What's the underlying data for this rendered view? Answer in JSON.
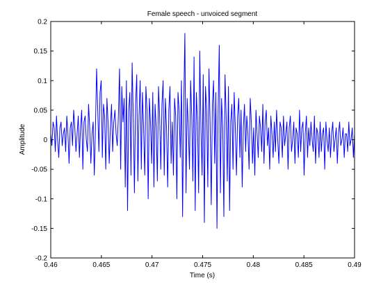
{
  "chart_data": {
    "type": "line",
    "title": "Female speech - unvoiced segment",
    "xlabel": "Time (s)",
    "ylabel": "Amplitude",
    "xlim": [
      0.46,
      0.49
    ],
    "ylim": [
      -0.2,
      0.2
    ],
    "grid": false,
    "legend": "none",
    "x_ticks": [
      "0.46",
      "0.465",
      "0.47",
      "0.475",
      "0.48",
      "0.485",
      "0.49"
    ],
    "y_ticks": [
      "-0.2",
      "-0.15",
      "-0.1",
      "-0.05",
      "0",
      "0.05",
      "0.1",
      "0.15",
      "0.2"
    ],
    "line_color": "#0000ff",
    "series": [
      {
        "x_start": 0.46,
        "x_end": 0.49,
        "values": [
          0.01,
          -0.01,
          0.03,
          0.02,
          -0.02,
          0.04,
          0.0,
          -0.03,
          0.02,
          0.03,
          -0.01,
          0.01,
          0.02,
          -0.02,
          0.04,
          0.01,
          -0.04,
          0.02,
          0.03,
          -0.01,
          0.05,
          0.02,
          -0.02,
          0.01,
          0.04,
          -0.03,
          0.02,
          0.05,
          -0.05,
          0.03,
          0.04,
          0.0,
          -0.02,
          0.06,
          0.02,
          -0.04,
          0.01,
          0.03,
          -0.06,
          0.02,
          0.12,
          0.05,
          -0.02,
          0.08,
          0.1,
          -0.03,
          0.06,
          0.04,
          -0.05,
          0.07,
          0.03,
          -0.04,
          0.02,
          0.06,
          -0.02,
          0.03,
          0.05,
          0.01,
          -0.01,
          0.04,
          0.12,
          -0.05,
          0.09,
          0.03,
          0.07,
          -0.08,
          0.1,
          -0.12,
          0.05,
          0.08,
          -0.06,
          0.13,
          0.04,
          -0.09,
          0.06,
          0.11,
          -0.07,
          0.04,
          0.1,
          -0.05,
          0.08,
          0.02,
          -0.06,
          0.09,
          0.05,
          -0.1,
          0.07,
          0.03,
          -0.04,
          0.08,
          -0.08,
          0.06,
          0.02,
          -0.07,
          0.09,
          0.04,
          -0.05,
          0.06,
          0.1,
          -0.06,
          0.07,
          0.02,
          -0.08,
          0.05,
          0.09,
          -0.04,
          0.03,
          -0.06,
          0.07,
          0.04,
          -0.1,
          0.08,
          0.05,
          -0.03,
          0.1,
          -0.13,
          0.06,
          0.18,
          -0.09,
          0.07,
          0.02,
          -0.05,
          0.1,
          0.04,
          -0.07,
          0.14,
          -0.12,
          0.08,
          0.03,
          -0.09,
          0.15,
          0.02,
          -0.06,
          0.11,
          -0.14,
          0.09,
          0.05,
          -0.08,
          0.12,
          0.03,
          -0.11,
          0.06,
          0.1,
          -0.04,
          0.08,
          -0.15,
          0.05,
          0.16,
          -0.09,
          0.07,
          0.02,
          -0.13,
          0.11,
          0.04,
          -0.07,
          0.09,
          -0.12,
          0.03,
          0.06,
          -0.05,
          0.08,
          0.02,
          -0.06,
          0.04,
          0.07,
          -0.03,
          0.05,
          -0.08,
          0.02,
          0.06,
          -0.02,
          0.04,
          0.01,
          -0.05,
          0.07,
          0.03,
          -0.04,
          0.02,
          -0.06,
          0.05,
          0.01,
          -0.03,
          0.04,
          0.02,
          -0.02,
          0.06,
          -0.04,
          0.03,
          0.05,
          -0.01,
          0.02,
          -0.05,
          0.04,
          0.01,
          -0.03,
          0.03,
          -0.02,
          0.05,
          0.0,
          -0.04,
          0.03,
          0.02,
          -0.03,
          0.04,
          -0.01,
          0.01,
          0.03,
          -0.05,
          0.02,
          0.04,
          -0.02,
          0.0,
          0.03,
          -0.04,
          0.02,
          0.01,
          -0.03,
          0.05,
          -0.02,
          0.02,
          0.03,
          -0.06,
          0.01,
          0.04,
          -0.03,
          0.02,
          -0.01,
          0.03,
          0.0,
          -0.02,
          0.04,
          -0.04,
          0.02,
          0.01,
          -0.03,
          0.03,
          -0.02,
          0.01,
          0.02,
          -0.05,
          0.03,
          0.0,
          -0.02,
          0.02,
          -0.03,
          0.01,
          0.03,
          -0.02,
          0.0,
          0.02,
          -0.04,
          0.01,
          0.03,
          -0.01,
          0.0,
          0.02,
          -0.03,
          0.01,
          0.01,
          -0.02,
          0.03,
          -0.01,
          0.0,
          0.02,
          -0.03,
          0.01
        ],
        "extra_detail_values": []
      }
    ]
  }
}
